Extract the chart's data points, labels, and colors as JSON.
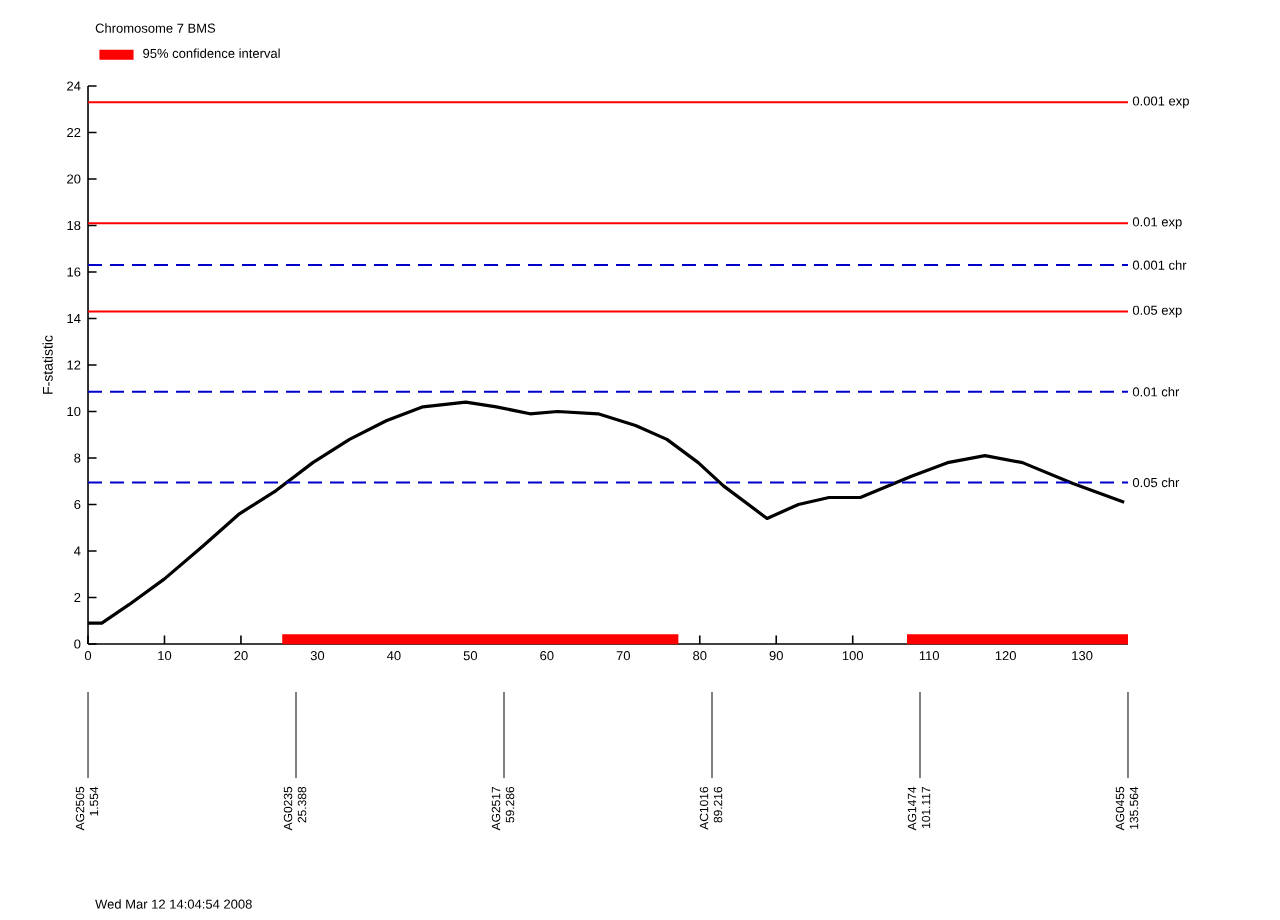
{
  "chart_data": {
    "type": "line",
    "title": "Chromosome 7  BMS",
    "ylabel": "F-statistic",
    "xlim": [
      0,
      136
    ],
    "ylim": [
      0,
      24
    ],
    "xticks": [
      0,
      10,
      20,
      30,
      40,
      50,
      60,
      70,
      80,
      90,
      100,
      110,
      120,
      130
    ],
    "yticks": [
      0,
      2,
      4,
      6,
      8,
      10,
      12,
      14,
      16,
      18,
      20,
      22,
      24
    ],
    "legend": "top left",
    "series": [
      {
        "color": "#000000",
        "x": [
          0,
          1.8,
          5.4,
          10,
          15,
          19.8,
          24.6,
          29.4,
          34.2,
          39,
          43.8,
          49.4,
          53.4,
          57.8,
          61.4,
          66.7,
          71.6,
          75.7,
          79.8,
          83.1,
          88.8,
          92.9,
          96.9,
          101,
          107.6,
          112.4,
          117.3,
          122.2,
          128.8,
          135.5
        ],
        "values": [
          0.9,
          0.9,
          1.7,
          2.8,
          4.2,
          5.6,
          6.6,
          7.8,
          8.8,
          9.6,
          10.2,
          10.4,
          10.2,
          9.9,
          10,
          9.9,
          9.4,
          8.8,
          7.8,
          6.8,
          5.4,
          6,
          6.3,
          6.3,
          7.2,
          7.8,
          8.1,
          7.8,
          6.9,
          6.1
        ]
      },
      {
        "name": "95% confidence interval",
        "color": "#ff0000",
        "x": [
          25.4,
          77.2
        ],
        "values": [
          0.2,
          0.2
        ]
      },
      {
        "color": "#ff0000",
        "x": [
          107.1,
          136
        ],
        "values": [
          0.2,
          0.2
        ]
      }
    ],
    "ref_lines": [
      {
        "axis": "y",
        "value": 23.3,
        "label": "0.001 exp",
        "color": "#ff0000",
        "line_style": "solid"
      },
      {
        "axis": "y",
        "value": 18.1,
        "label": "0.01 exp",
        "color": "#ff0000",
        "line_style": "solid"
      },
      {
        "axis": "y",
        "value": 16.3,
        "label": "0.001 chr",
        "color": "#0000cc",
        "line_style": "dashed"
      },
      {
        "axis": "y",
        "value": 14.3,
        "label": "0.05 exp",
        "color": "#ff0000",
        "line_style": "solid"
      },
      {
        "axis": "y",
        "value": 10.85,
        "label": "0.01 chr",
        "color": "#0000cc",
        "line_style": "dashed"
      },
      {
        "axis": "y",
        "value": 6.95,
        "label": "0.05 chr",
        "color": "#0000cc",
        "line_style": "dashed"
      }
    ],
    "annotations": [
      "AG2505",
      "1.554",
      "AG0235",
      "25.388",
      "AG2517",
      "59.286",
      "AC1016",
      "89.216",
      "AG1474",
      "101.117",
      "AG0455",
      "135.564",
      "Wed Mar 12 14:04:54 2008"
    ]
  }
}
